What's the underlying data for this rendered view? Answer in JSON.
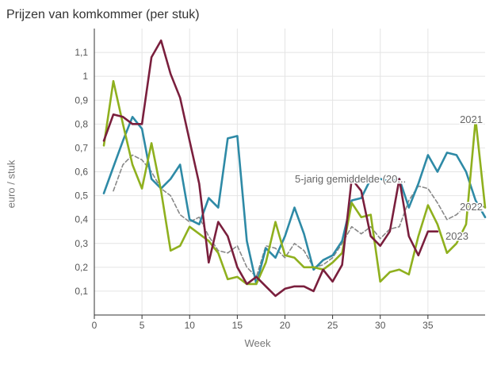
{
  "chart_data": {
    "type": "line",
    "title": "Prijzen van komkommer (per stuk)",
    "xlabel": "Week",
    "ylabel": "euro / stuk",
    "xlim": [
      0,
      41
    ],
    "ylim": [
      0,
      1.2
    ],
    "x_ticks": [
      0,
      5,
      10,
      15,
      20,
      25,
      30,
      35
    ],
    "y_ticks": [
      0.1,
      0.2,
      0.3,
      0.4,
      0.5,
      0.6,
      0.7,
      0.8,
      0.9,
      1,
      1.1
    ],
    "y_tick_labels": [
      "0,1",
      "0,2",
      "0,3",
      "0,4",
      "0,5",
      "0,6",
      "0,7",
      "0,8",
      "0,9",
      "1",
      "1,1"
    ],
    "series": [
      {
        "name": "2021",
        "label": "2021",
        "color": "#2e8aa6",
        "dashed": false,
        "x": [
          1,
          2,
          3,
          4,
          5,
          6,
          7,
          8,
          9,
          10,
          11,
          12,
          13,
          14,
          15,
          16,
          17,
          18,
          19,
          20,
          21,
          22,
          23,
          24,
          25,
          26,
          27,
          28,
          29,
          30,
          31,
          32,
          33,
          34,
          35,
          36,
          37,
          38,
          39,
          40,
          41
        ],
        "values": [
          0.51,
          0.62,
          0.73,
          0.83,
          0.78,
          0.57,
          0.53,
          0.57,
          0.63,
          0.4,
          0.38,
          0.49,
          0.45,
          0.74,
          0.75,
          0.31,
          0.13,
          0.28,
          0.24,
          0.33,
          0.45,
          0.34,
          0.19,
          0.23,
          0.25,
          0.31,
          0.48,
          0.49,
          0.57,
          0.57,
          0.56,
          0.57,
          0.45,
          0.55,
          0.67,
          0.6,
          0.68,
          0.67,
          0.6,
          0.48,
          0.41
        ]
      },
      {
        "name": "2022",
        "label": "2022",
        "color": "#8fb01e",
        "dashed": false,
        "x": [
          1,
          2,
          3,
          4,
          5,
          6,
          7,
          8,
          9,
          10,
          11,
          12,
          13,
          14,
          15,
          16,
          17,
          18,
          19,
          20,
          21,
          22,
          23,
          24,
          25,
          26,
          27,
          28,
          29,
          30,
          31,
          32,
          33,
          34,
          35,
          36,
          37,
          38,
          39,
          40,
          41
        ],
        "values": [
          0.71,
          0.98,
          0.8,
          0.63,
          0.53,
          0.72,
          0.52,
          0.27,
          0.29,
          0.37,
          0.34,
          0.31,
          0.26,
          0.15,
          0.16,
          0.13,
          0.13,
          0.22,
          0.39,
          0.25,
          0.24,
          0.2,
          0.2,
          0.19,
          0.22,
          0.26,
          0.47,
          0.41,
          0.42,
          0.14,
          0.18,
          0.19,
          0.17,
          0.33,
          0.46,
          0.38,
          0.26,
          0.3,
          0.38,
          0.82,
          0.45
        ]
      },
      {
        "name": "2023",
        "label": "2023",
        "color": "#7a1f3d",
        "dashed": false,
        "x": [
          1,
          2,
          3,
          4,
          5,
          6,
          7,
          8,
          9,
          10,
          11,
          12,
          13,
          14,
          15,
          16,
          17,
          18,
          19,
          20,
          21,
          22,
          23,
          24,
          25,
          26,
          27,
          28,
          29,
          30,
          31,
          32,
          33,
          34,
          35,
          36
        ],
        "values": [
          0.73,
          0.84,
          0.83,
          0.8,
          0.8,
          1.08,
          1.15,
          1.01,
          0.91,
          0.73,
          0.55,
          0.22,
          0.39,
          0.33,
          0.2,
          0.13,
          0.16,
          0.12,
          0.08,
          0.11,
          0.12,
          0.12,
          0.1,
          0.19,
          0.14,
          0.21,
          0.57,
          0.52,
          0.33,
          0.29,
          0.35,
          0.57,
          0.33,
          0.25,
          0.35,
          0.35
        ]
      },
      {
        "name": "5-jarig gemiddelde",
        "label": "5-jarig gemiddelde (20...",
        "color": "#888888",
        "dashed": true,
        "x": [
          2,
          3,
          4,
          5,
          6,
          7,
          8,
          9,
          10,
          11,
          12,
          13,
          14,
          15,
          16,
          17,
          18,
          19,
          20,
          21,
          22,
          23,
          24,
          25,
          26,
          27,
          28,
          29,
          30,
          31,
          32,
          33,
          34,
          35,
          36,
          37,
          38,
          39,
          40,
          41
        ],
        "values": [
          0.52,
          0.63,
          0.67,
          0.65,
          0.6,
          0.53,
          0.5,
          0.42,
          0.39,
          0.41,
          0.33,
          0.27,
          0.26,
          0.29,
          0.2,
          0.16,
          0.29,
          0.28,
          0.24,
          0.3,
          0.27,
          0.2,
          0.21,
          0.24,
          0.3,
          0.37,
          0.34,
          0.37,
          0.32,
          0.36,
          0.37,
          0.48,
          0.54,
          0.53,
          0.47,
          0.4,
          0.42,
          0.46,
          0.47,
          0.45
        ]
      }
    ]
  }
}
